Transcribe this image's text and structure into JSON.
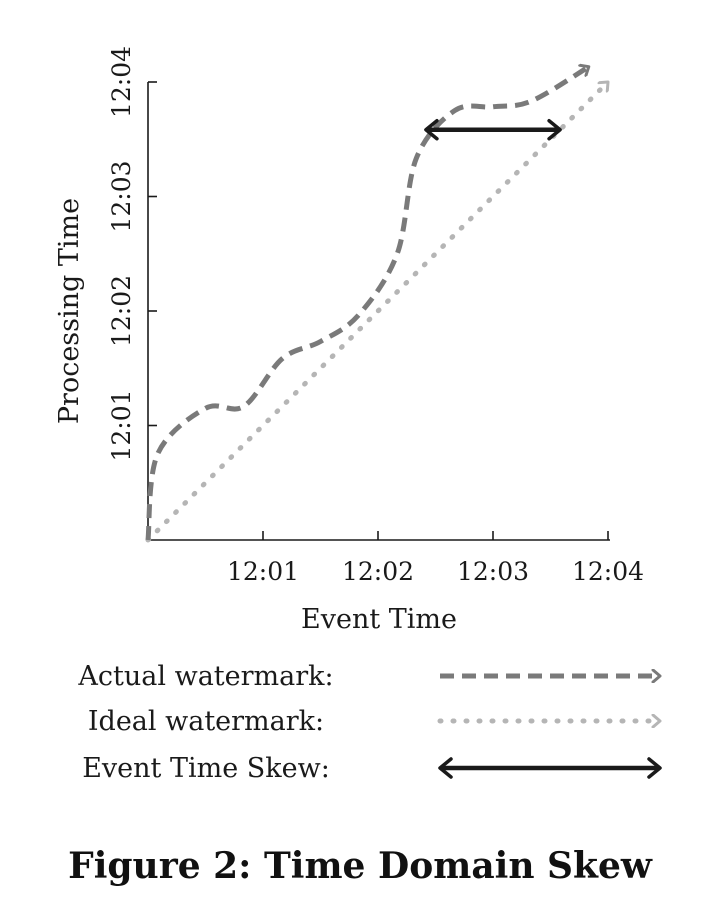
{
  "caption": "Figure 2: Time Domain Skew",
  "chart_data": {
    "type": "line",
    "title": "",
    "xlabel": "Event Time",
    "ylabel": "Processing Time",
    "xlim": [
      "12:00",
      "12:04"
    ],
    "ylim": [
      "12:00",
      "12:04"
    ],
    "x_ticks": [
      "12:01",
      "12:02",
      "12:03",
      "12:04"
    ],
    "y_ticks": [
      "12:01",
      "12:02",
      "12:03",
      "12:04"
    ],
    "grid": false,
    "legend_position": "bottom",
    "series": [
      {
        "name": "Actual watermark",
        "style": "dashed",
        "color": "#7a7a7a",
        "x": [
          "12:00:00",
          "12:00:05",
          "12:00:30",
          "12:00:50",
          "12:01:10",
          "12:01:30",
          "12:01:50",
          "12:02:10",
          "12:02:20",
          "12:02:40",
          "12:03:00",
          "12:03:20",
          "12:03:50"
        ],
        "y": [
          "12:00:00",
          "12:00:45",
          "12:01:09",
          "12:01:10",
          "12:01:35",
          "12:01:44",
          "12:01:58",
          "12:02:30",
          "12:03:20",
          "12:03:45",
          "12:03:47",
          "12:03:50",
          "12:04:08"
        ]
      },
      {
        "name": "Ideal watermark",
        "style": "dotted",
        "color": "#b5b5b5",
        "x": [
          "12:00:00",
          "12:04:00"
        ],
        "y": [
          "12:00:00",
          "12:04:00"
        ]
      }
    ],
    "annotations": [
      {
        "name": "Event Time Skew",
        "type": "double-arrow",
        "color": "#1a1a1a",
        "x_start": "12:02:25",
        "x_end": "12:03:35",
        "y": "12:03:35"
      }
    ]
  },
  "legend": [
    {
      "label": "Actual watermark:"
    },
    {
      "label": "Ideal watermark:"
    },
    {
      "label": "Event Time Skew:"
    }
  ]
}
